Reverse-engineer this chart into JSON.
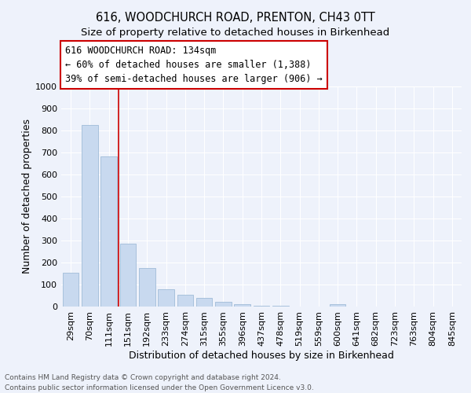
{
  "title": "616, WOODCHURCH ROAD, PRENTON, CH43 0TT",
  "subtitle": "Size of property relative to detached houses in Birkenhead",
  "xlabel": "Distribution of detached houses by size in Birkenhead",
  "ylabel": "Number of detached properties",
  "categories": [
    "29sqm",
    "70sqm",
    "111sqm",
    "151sqm",
    "192sqm",
    "233sqm",
    "274sqm",
    "315sqm",
    "355sqm",
    "396sqm",
    "437sqm",
    "478sqm",
    "519sqm",
    "559sqm",
    "600sqm",
    "641sqm",
    "682sqm",
    "723sqm",
    "763sqm",
    "804sqm",
    "845sqm"
  ],
  "values": [
    152,
    824,
    681,
    284,
    175,
    79,
    53,
    41,
    21,
    12,
    5,
    5,
    0,
    0,
    9,
    0,
    0,
    0,
    0,
    0,
    0
  ],
  "bar_color": "#c8d9ef",
  "bar_edge_color": "#a0bcd8",
  "vline_x_idx": 2.5,
  "vline_color": "#cc0000",
  "annotation_line1": "616 WOODCHURCH ROAD: 134sqm",
  "annotation_line2": "← 60% of detached houses are smaller (1,388)",
  "annotation_line3": "39% of semi-detached houses are larger (906) →",
  "annotation_box_color": "#ffffff",
  "annotation_box_edge": "#cc0000",
  "ylim": [
    0,
    1000
  ],
  "yticks": [
    0,
    100,
    200,
    300,
    400,
    500,
    600,
    700,
    800,
    900,
    1000
  ],
  "footer1": "Contains HM Land Registry data © Crown copyright and database right 2024.",
  "footer2": "Contains public sector information licensed under the Open Government Licence v3.0.",
  "background_color": "#eef2fb",
  "plot_background": "#eef2fb",
  "grid_color": "#ffffff",
  "title_fontsize": 10.5,
  "subtitle_fontsize": 9.5,
  "axis_label_fontsize": 9,
  "tick_fontsize": 8,
  "annotation_fontsize": 8.5,
  "footer_fontsize": 6.5
}
